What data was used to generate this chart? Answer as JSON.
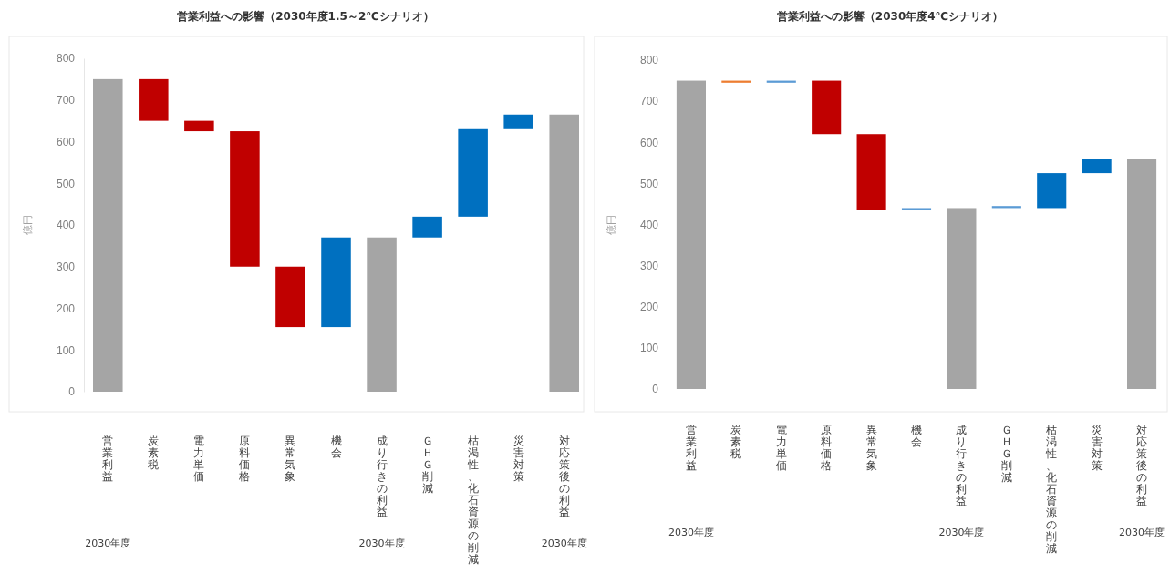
{
  "chart_data": [
    {
      "type": "bar",
      "title": "営業利益への影響（2030年度1.5～2℃シナリオ）",
      "ylabel": "億円",
      "categories": [
        "営業利益",
        "炭素税",
        "電力単価",
        "原料価格",
        "異常気象",
        "機会",
        "成り行きの利益",
        "ＧＨＧ削減",
        "枯渇性、化石資源の削減",
        "災害対策",
        "対応策後の利益"
      ],
      "values": [
        750,
        -100,
        -25,
        -325,
        -145,
        215,
        370,
        50,
        210,
        35,
        665
      ],
      "base": [
        0,
        750,
        650,
        625,
        300,
        155,
        0,
        370,
        420,
        630,
        0
      ],
      "colors": [
        "#a5a5a5",
        "#c00000",
        "#c00000",
        "#c00000",
        "#c00000",
        "#0070c0",
        "#a5a5a5",
        "#0070c0",
        "#0070c0",
        "#0070c0",
        "#a5a5a5"
      ],
      "ylim": [
        0,
        800
      ],
      "yticks": [
        0,
        100,
        200,
        300,
        400,
        500,
        600,
        700,
        800
      ],
      "grid": false,
      "annotations": [
        "2030年度",
        "2030年度",
        "2030年度"
      ]
    },
    {
      "type": "bar",
      "title": "営業利益への影響（2030年度4℃シナリオ）",
      "ylabel": "億円",
      "categories": [
        "営業利益",
        "炭素税",
        "電力単価",
        "原料価格",
        "異常気象",
        "機会",
        "成り行きの利益",
        "ＧＨＧ削減",
        "枯渇性、化石資源の削減",
        "災害対策",
        "対応策後の利益"
      ],
      "values": [
        750,
        -5,
        5,
        -130,
        -185,
        5,
        440,
        5,
        85,
        35,
        560
      ],
      "base": [
        0,
        750,
        745,
        750,
        620,
        435,
        0,
        440,
        440,
        525,
        0
      ],
      "colors": [
        "#a5a5a5",
        "#ed7d31",
        "#5b9bd5",
        "#c00000",
        "#c00000",
        "#5b9bd5",
        "#a5a5a5",
        "#5b9bd5",
        "#0070c0",
        "#0070c0",
        "#a5a5a5"
      ],
      "ylim": [
        0,
        800
      ],
      "yticks": [
        0,
        100,
        200,
        300,
        400,
        500,
        600,
        700,
        800
      ],
      "grid": false,
      "annotations": [
        "2030年度",
        "2030年度",
        "2030年度"
      ]
    }
  ]
}
